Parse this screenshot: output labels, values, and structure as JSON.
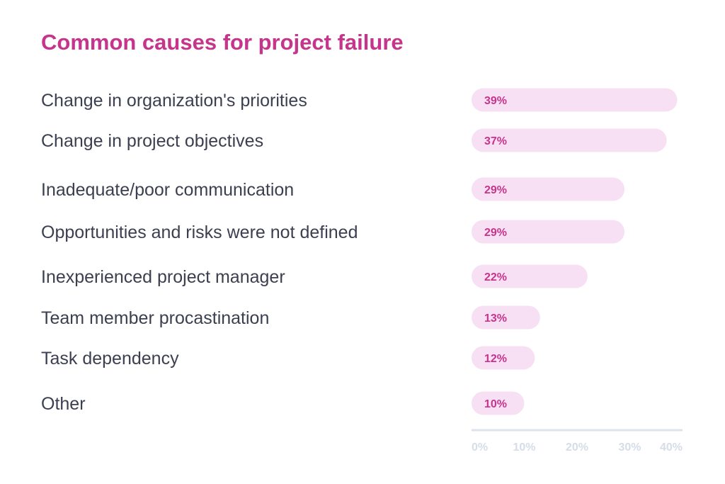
{
  "colors": {
    "title": "#c5358c",
    "bar": "#f7e0f4",
    "value_label": "#c5358c",
    "category_label": "#3b3f4f",
    "axis": "#dde3ed",
    "tick_label": "#d6dde8"
  },
  "chart_data": {
    "type": "bar",
    "orientation": "horizontal",
    "title": "Common causes for project failure",
    "categories": [
      "Change in organization's priorities",
      "Change in project objectives",
      "Inadequate/poor communication",
      "Opportunities and risks were not defined",
      "Inexperienced project manager",
      "Team member procastination",
      "Task dependency",
      "Other"
    ],
    "values": [
      39,
      37,
      29,
      29,
      22,
      13,
      12,
      10
    ],
    "value_labels": [
      "39%",
      "37%",
      "29%",
      "29%",
      "22%",
      "13%",
      "12%",
      "10%"
    ],
    "xlim": [
      0,
      40
    ],
    "x_ticks": [
      "0%",
      "10%",
      "20%",
      "30%",
      "40%"
    ],
    "grid": false,
    "legend": "none"
  }
}
